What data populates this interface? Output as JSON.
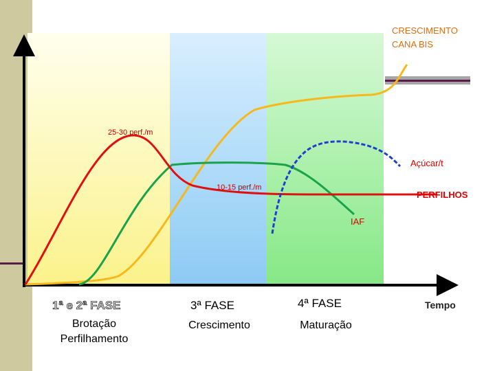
{
  "annotations": {
    "top_right": [
      "CRESCIMENTO",
      "CANA BIS"
    ],
    "peak_tillers": "25-30 perf./m",
    "sugar": "Açúcar/t",
    "final_tillers": "10-15 perf./m",
    "tillers": "PERFILHOS",
    "lai": "IAF"
  },
  "phases": [
    {
      "title": "1ª e 2ª FASE",
      "lines": [
        "Brotação",
        "Perfilhamento"
      ]
    },
    {
      "title": "3ª FASE",
      "lines": [
        "Crescimento"
      ]
    },
    {
      "title": "4ª FASE",
      "lines": [
        "Maturação"
      ]
    }
  ],
  "x_axis_label": "Tempo"
}
